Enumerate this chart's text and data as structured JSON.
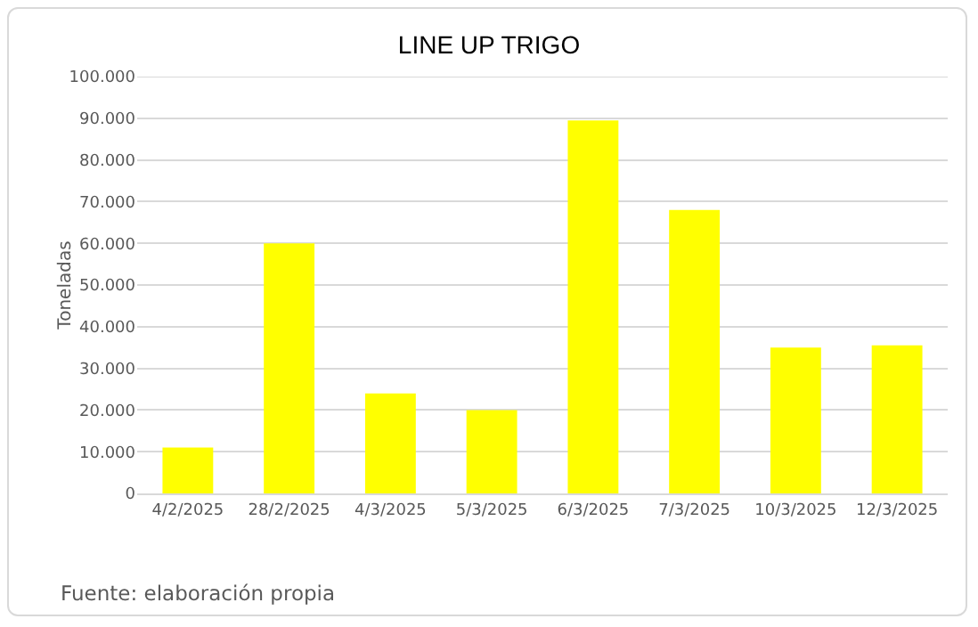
{
  "chart_data": {
    "type": "bar",
    "title": "LINE UP TRIGO",
    "ylabel": "Toneladas",
    "categories": [
      "4/2/2025",
      "28/2/2025",
      "4/3/2025",
      "5/3/2025",
      "6/3/2025",
      "7/3/2025",
      "10/3/2025",
      "12/3/2025"
    ],
    "values": [
      11000,
      60000,
      24000,
      20000,
      89500,
      68000,
      35000,
      35500
    ],
    "color": "#ffff00",
    "ylim": [
      0,
      100000
    ],
    "yticks": [
      {
        "value": 0,
        "label": "0"
      },
      {
        "value": 10000,
        "label": "10.000"
      },
      {
        "value": 20000,
        "label": "20.000"
      },
      {
        "value": 30000,
        "label": "30.000"
      },
      {
        "value": 40000,
        "label": "40.000"
      },
      {
        "value": 50000,
        "label": "50.000"
      },
      {
        "value": 60000,
        "label": "60.000"
      },
      {
        "value": 70000,
        "label": "70.000"
      },
      {
        "value": 80000,
        "label": "80.000"
      },
      {
        "value": 90000,
        "label": "90.000"
      },
      {
        "value": 100000,
        "label": "100.000"
      }
    ],
    "grid": "y",
    "annotations": [
      "Fuente: elaboración propia"
    ]
  }
}
